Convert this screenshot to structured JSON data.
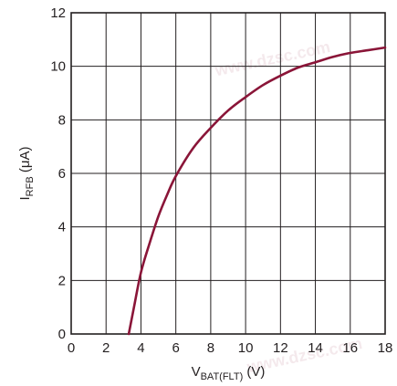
{
  "chart_data": {
    "type": "line",
    "xlabel_main": "V",
    "xlabel_sub": "BAT(FLT)",
    "xlabel_unit": " (V)",
    "ylabel_main": "I",
    "ylabel_sub": "RFB",
    "ylabel_unit": " (μA)",
    "xlim": [
      0,
      18
    ],
    "ylim": [
      0,
      12
    ],
    "x_ticks": [
      0,
      2,
      4,
      6,
      8,
      10,
      12,
      14,
      16,
      18
    ],
    "y_ticks": [
      0,
      2,
      4,
      6,
      8,
      10,
      12
    ],
    "grid": true,
    "series": [
      {
        "color": "#8a1538",
        "x": [
          3.3,
          3.6,
          4.0,
          4.5,
          5.0,
          5.5,
          6.0,
          7.0,
          8.0,
          9.0,
          10.0,
          11.0,
          12.0,
          13.0,
          14.0,
          15.0,
          16.0,
          17.0,
          18.0
        ],
        "y": [
          0.0,
          1.0,
          2.3,
          3.4,
          4.4,
          5.2,
          5.9,
          6.95,
          7.7,
          8.35,
          8.85,
          9.3,
          9.65,
          9.95,
          10.15,
          10.35,
          10.5,
          10.6,
          10.7
        ]
      }
    ]
  },
  "watermark_text": "www.dzsc.com"
}
